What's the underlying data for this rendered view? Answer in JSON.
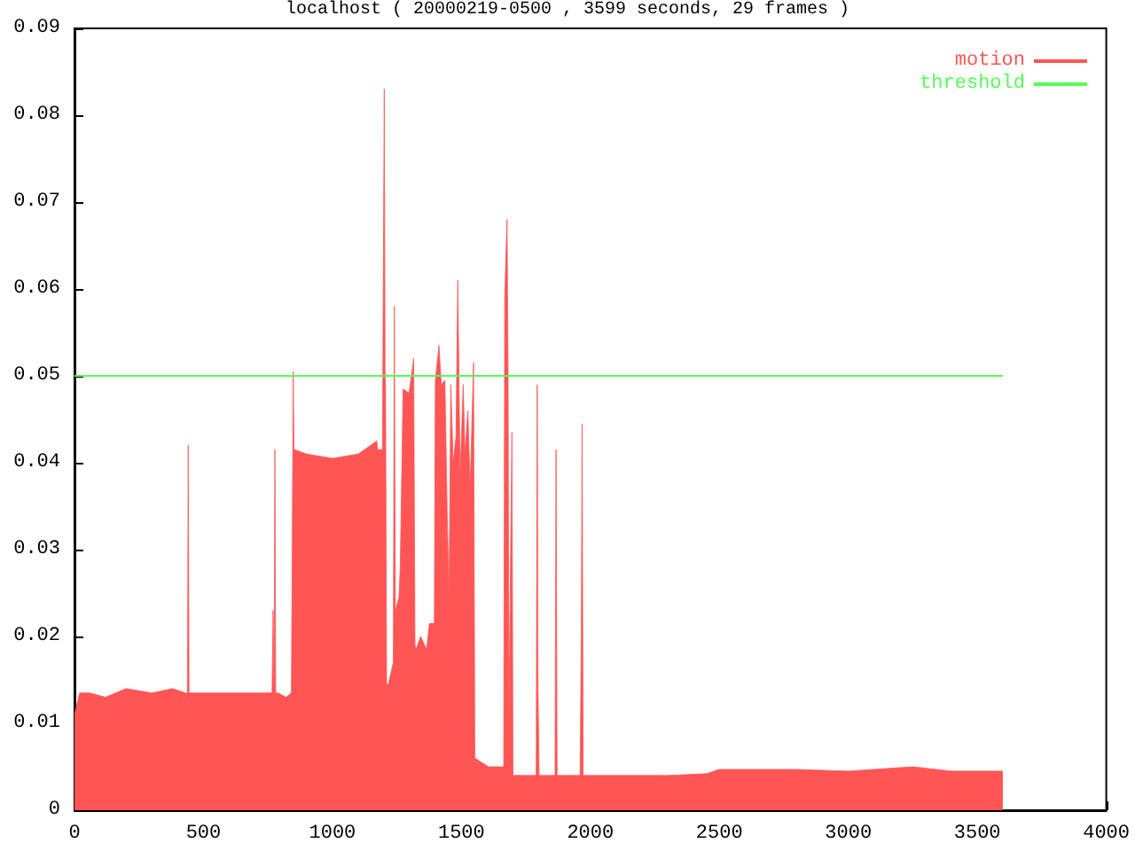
{
  "chart_data": {
    "type": "area",
    "title": "localhost ( 20000219-0500 , 3599 seconds, 29 frames )",
    "xlim": [
      0,
      4000
    ],
    "xticks": [
      0,
      500,
      1000,
      1500,
      2000,
      2500,
      3000,
      3500,
      4000
    ],
    "ylim": [
      0,
      0.09
    ],
    "yticks": [
      0,
      0.01,
      0.02,
      0.03,
      0.04,
      0.05,
      0.06,
      0.07,
      0.08,
      0.09
    ],
    "grid": false,
    "legend": "top right",
    "marker": "none",
    "series": [
      {
        "name": "motion",
        "color": "#ff5555",
        "x": [
          0,
          20,
          60,
          120,
          200,
          300,
          380,
          430,
          438,
          441,
          444,
          450,
          520,
          600,
          700,
          740,
          766,
          770,
          774,
          777,
          780,
          790,
          820,
          841,
          845,
          848,
          851,
          853,
          900,
          1000,
          1100,
          1172,
          1175,
          1194,
          1198,
          1201,
          1204,
          1206,
          1210,
          1217,
          1236,
          1240,
          1244,
          1247,
          1258,
          1263,
          1274,
          1297,
          1315,
          1320,
          1324,
          1342,
          1365,
          1376,
          1395,
          1399,
          1413,
          1422,
          1436,
          1445,
          1452,
          1459,
          1468,
          1479,
          1486,
          1495,
          1507,
          1514,
          1525,
          1534,
          1547,
          1552,
          1605,
          1664,
          1668,
          1677,
          1681,
          1684,
          1696,
          1700,
          1703,
          1790,
          1794,
          1797,
          1801,
          1805,
          1863,
          1867,
          1871,
          1960,
          1965,
          1968,
          1972,
          1976,
          2100,
          2300,
          2450,
          2500,
          2800,
          3000,
          3250,
          3400,
          3599
        ],
        "values": [
          0.011,
          0.0135,
          0.0135,
          0.013,
          0.014,
          0.0135,
          0.014,
          0.0135,
          0.0135,
          0.042,
          0.0135,
          0.0135,
          0.0135,
          0.0135,
          0.0135,
          0.0135,
          0.0135,
          0.023,
          0.0135,
          0.0415,
          0.0135,
          0.0135,
          0.013,
          0.0135,
          0.0135,
          0.0505,
          0.041,
          0.0415,
          0.041,
          0.0405,
          0.041,
          0.0425,
          0.0415,
          0.0415,
          0.0415,
          0.083,
          0.0505,
          0.049,
          0.0145,
          0.0145,
          0.017,
          0.058,
          0.023,
          0.023,
          0.0245,
          0.028,
          0.0485,
          0.048,
          0.052,
          0.019,
          0.0185,
          0.02,
          0.0185,
          0.0215,
          0.0215,
          0.0495,
          0.0535,
          0.049,
          0.0495,
          0.034,
          0.0245,
          0.049,
          0.04,
          0.043,
          0.061,
          0.0385,
          0.049,
          0.041,
          0.046,
          0.037,
          0.0515,
          0.006,
          0.005,
          0.005,
          0.059,
          0.068,
          0.0505,
          0.011,
          0.0435,
          0.004,
          0.004,
          0.004,
          0.049,
          0.014,
          0.004,
          0.004,
          0.004,
          0.0415,
          0.004,
          0.004,
          0.0205,
          0.0445,
          0.004,
          0.004,
          0.004,
          0.004,
          0.0042,
          0.0047,
          0.0047,
          0.0045,
          0.005,
          0.0045,
          0.0045
        ]
      },
      {
        "name": "threshold",
        "type": "line",
        "color": "#55ff55",
        "x": [
          0,
          3599
        ],
        "values": [
          0.05,
          0.05
        ]
      }
    ]
  }
}
